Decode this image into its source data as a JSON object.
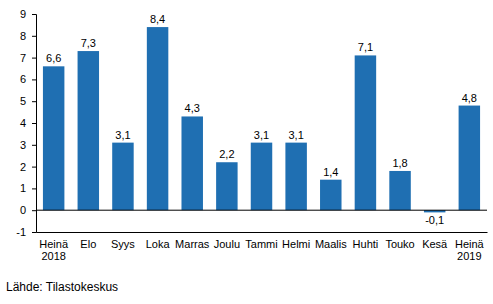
{
  "chart_data": {
    "type": "bar",
    "categories": [
      "Heinä\n2018",
      "Elo",
      "Syys",
      "Loka",
      "Marras",
      "Joulu",
      "Tammi",
      "Helmi",
      "Maalis",
      "Huhti",
      "Touko",
      "Kesä",
      "Heinä\n2019"
    ],
    "values": [
      6.6,
      7.3,
      3.1,
      8.4,
      4.3,
      2.2,
      3.1,
      3.1,
      1.4,
      7.1,
      1.8,
      -0.1,
      4.8
    ],
    "value_labels": [
      "6,6",
      "7,3",
      "3,1",
      "8,4",
      "4,3",
      "2,2",
      "3,1",
      "3,1",
      "1,4",
      "7,1",
      "1,8",
      "-0,1",
      "4,8"
    ],
    "color": "#1f6fb2",
    "ylim": [
      -1,
      9
    ],
    "yticks": [
      -1,
      0,
      1,
      2,
      3,
      4,
      5,
      6,
      7,
      8,
      9
    ],
    "grid": false,
    "data_labels": true,
    "annotations": [
      "Lähde: Tilastokeskus"
    ]
  }
}
